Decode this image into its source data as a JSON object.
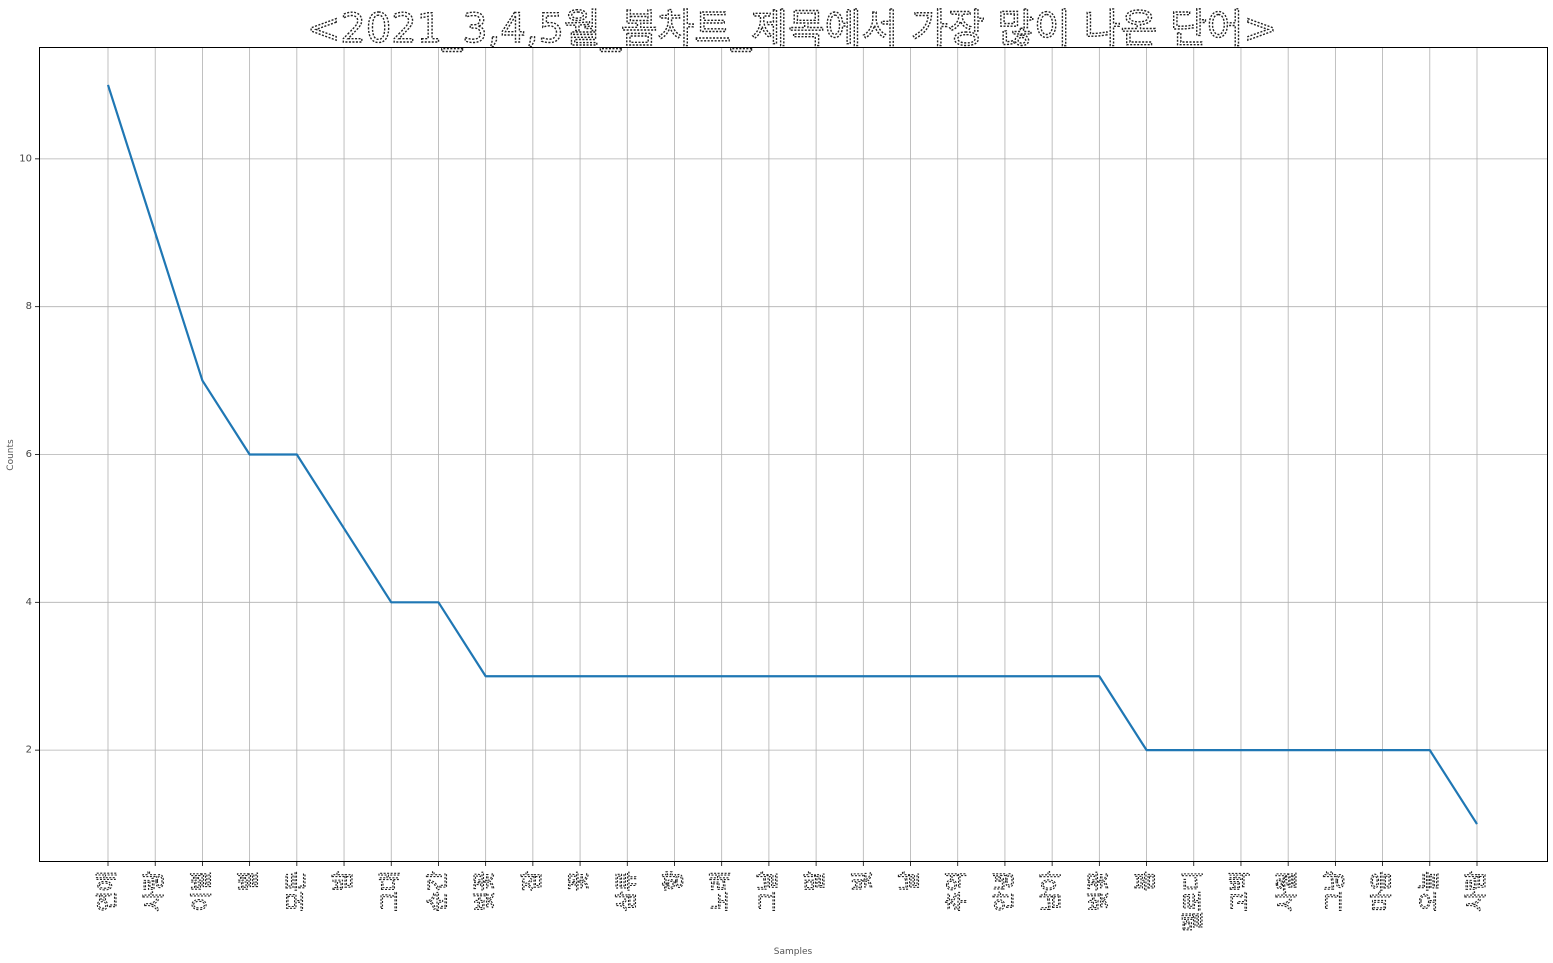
{
  "chart_data": {
    "type": "line",
    "title": "<2021_3,4,5월_봄차트_제목에서 가장 많이 나온 단어>",
    "xlabel": "Samples",
    "ylabel": "Counts",
    "categories": [
      "연애",
      "사랑",
      "이별",
      "별",
      "모든",
      "밤",
      "그대",
      "순간",
      "벚꽃",
      "잠",
      "꽃",
      "삼류",
      "향",
      "노래",
      "그날",
      "말",
      "빛",
      "날",
      "추억",
      "안녕",
      "남아",
      "벚꽃",
      "봄",
      "멜로디",
      "고백",
      "사월",
      "그냥",
      "마음",
      "오늘",
      "사람"
    ],
    "series": [
      {
        "values": [
          11,
          9,
          7,
          6,
          6,
          5,
          4,
          4,
          3,
          3,
          3,
          3,
          3,
          3,
          3,
          3,
          3,
          3,
          3,
          3,
          3,
          3,
          2,
          2,
          2,
          2,
          2,
          2,
          2,
          1
        ]
      }
    ],
    "yticks": [
      2,
      4,
      6,
      8,
      10
    ],
    "ylim": [
      0.5,
      11.5
    ],
    "grid": true,
    "line_color": "#1f77b4"
  }
}
